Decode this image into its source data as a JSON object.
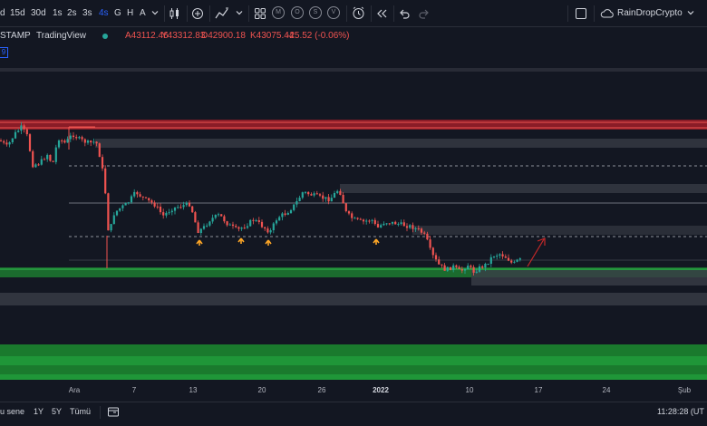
{
  "toolbar": {
    "intervals": [
      "d",
      "15d",
      "30d",
      "1s",
      "2s",
      "3s",
      "4s",
      "G",
      "H",
      "A"
    ],
    "active_interval": "4s",
    "indicator_badges": [
      "M",
      "O",
      "S",
      "V"
    ],
    "user_name": "RainDropCrypto"
  },
  "legend": {
    "symbol_suffix": "STAMP",
    "provider": "TradingView",
    "open": "A43112.46",
    "high": "Y43312.83",
    "low": "D42900.18",
    "close": "K43075.44",
    "change": "-25.52 (-0.06%)",
    "badge": "9",
    "colors": {
      "positive": "#26a69a",
      "negative": "#ef5350"
    }
  },
  "xaxis": {
    "ticks": [
      {
        "label": "Ara",
        "bold": false
      },
      {
        "label": "7",
        "bold": false
      },
      {
        "label": "13",
        "bold": false
      },
      {
        "label": "20",
        "bold": false
      },
      {
        "label": "26",
        "bold": false
      },
      {
        "label": "2022",
        "bold": true
      },
      {
        "label": "10",
        "bold": false
      },
      {
        "label": "17",
        "bold": false
      },
      {
        "label": "24",
        "bold": false
      },
      {
        "label": "Şub",
        "bold": false
      }
    ]
  },
  "bottombar": {
    "ranges": [
      "u sene",
      "1Y",
      "5Y",
      "Tümü"
    ],
    "clock": "11:28:28 (UT"
  }
}
